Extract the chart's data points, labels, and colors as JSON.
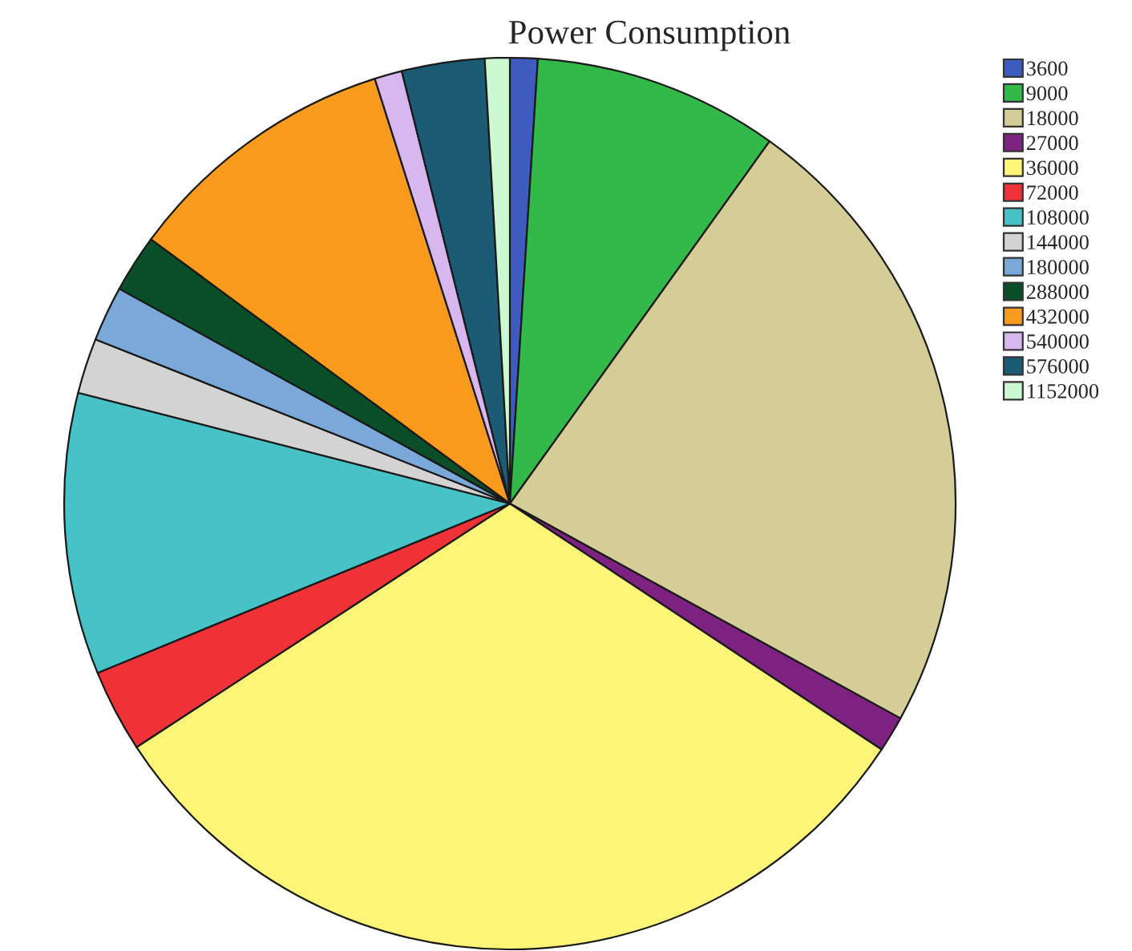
{
  "chart_data": {
    "type": "pie",
    "title": "Power Consumption",
    "categories": [
      "3600",
      "9000",
      "18000",
      "27000",
      "36000",
      "72000",
      "108000",
      "144000",
      "180000",
      "288000",
      "432000",
      "540000",
      "576000",
      "1152000"
    ],
    "values": [
      1.0,
      8.9,
      23.1,
      1.3,
      31.5,
      3.0,
      10.2,
      2.0,
      2.0,
      2.1,
      10.0,
      1.0,
      3.0,
      0.9
    ],
    "colors": [
      "#3f5bbf",
      "#33b94a",
      "#d4cd98",
      "#7d2280",
      "#fcf577",
      "#ee3237",
      "#47c3c8",
      "#d3d3d3",
      "#7aa9d9",
      "#0b4f2a",
      "#f79a1e",
      "#d8b6ee",
      "#1b5b73",
      "#ccf9d2"
    ],
    "legend": "top right"
  }
}
